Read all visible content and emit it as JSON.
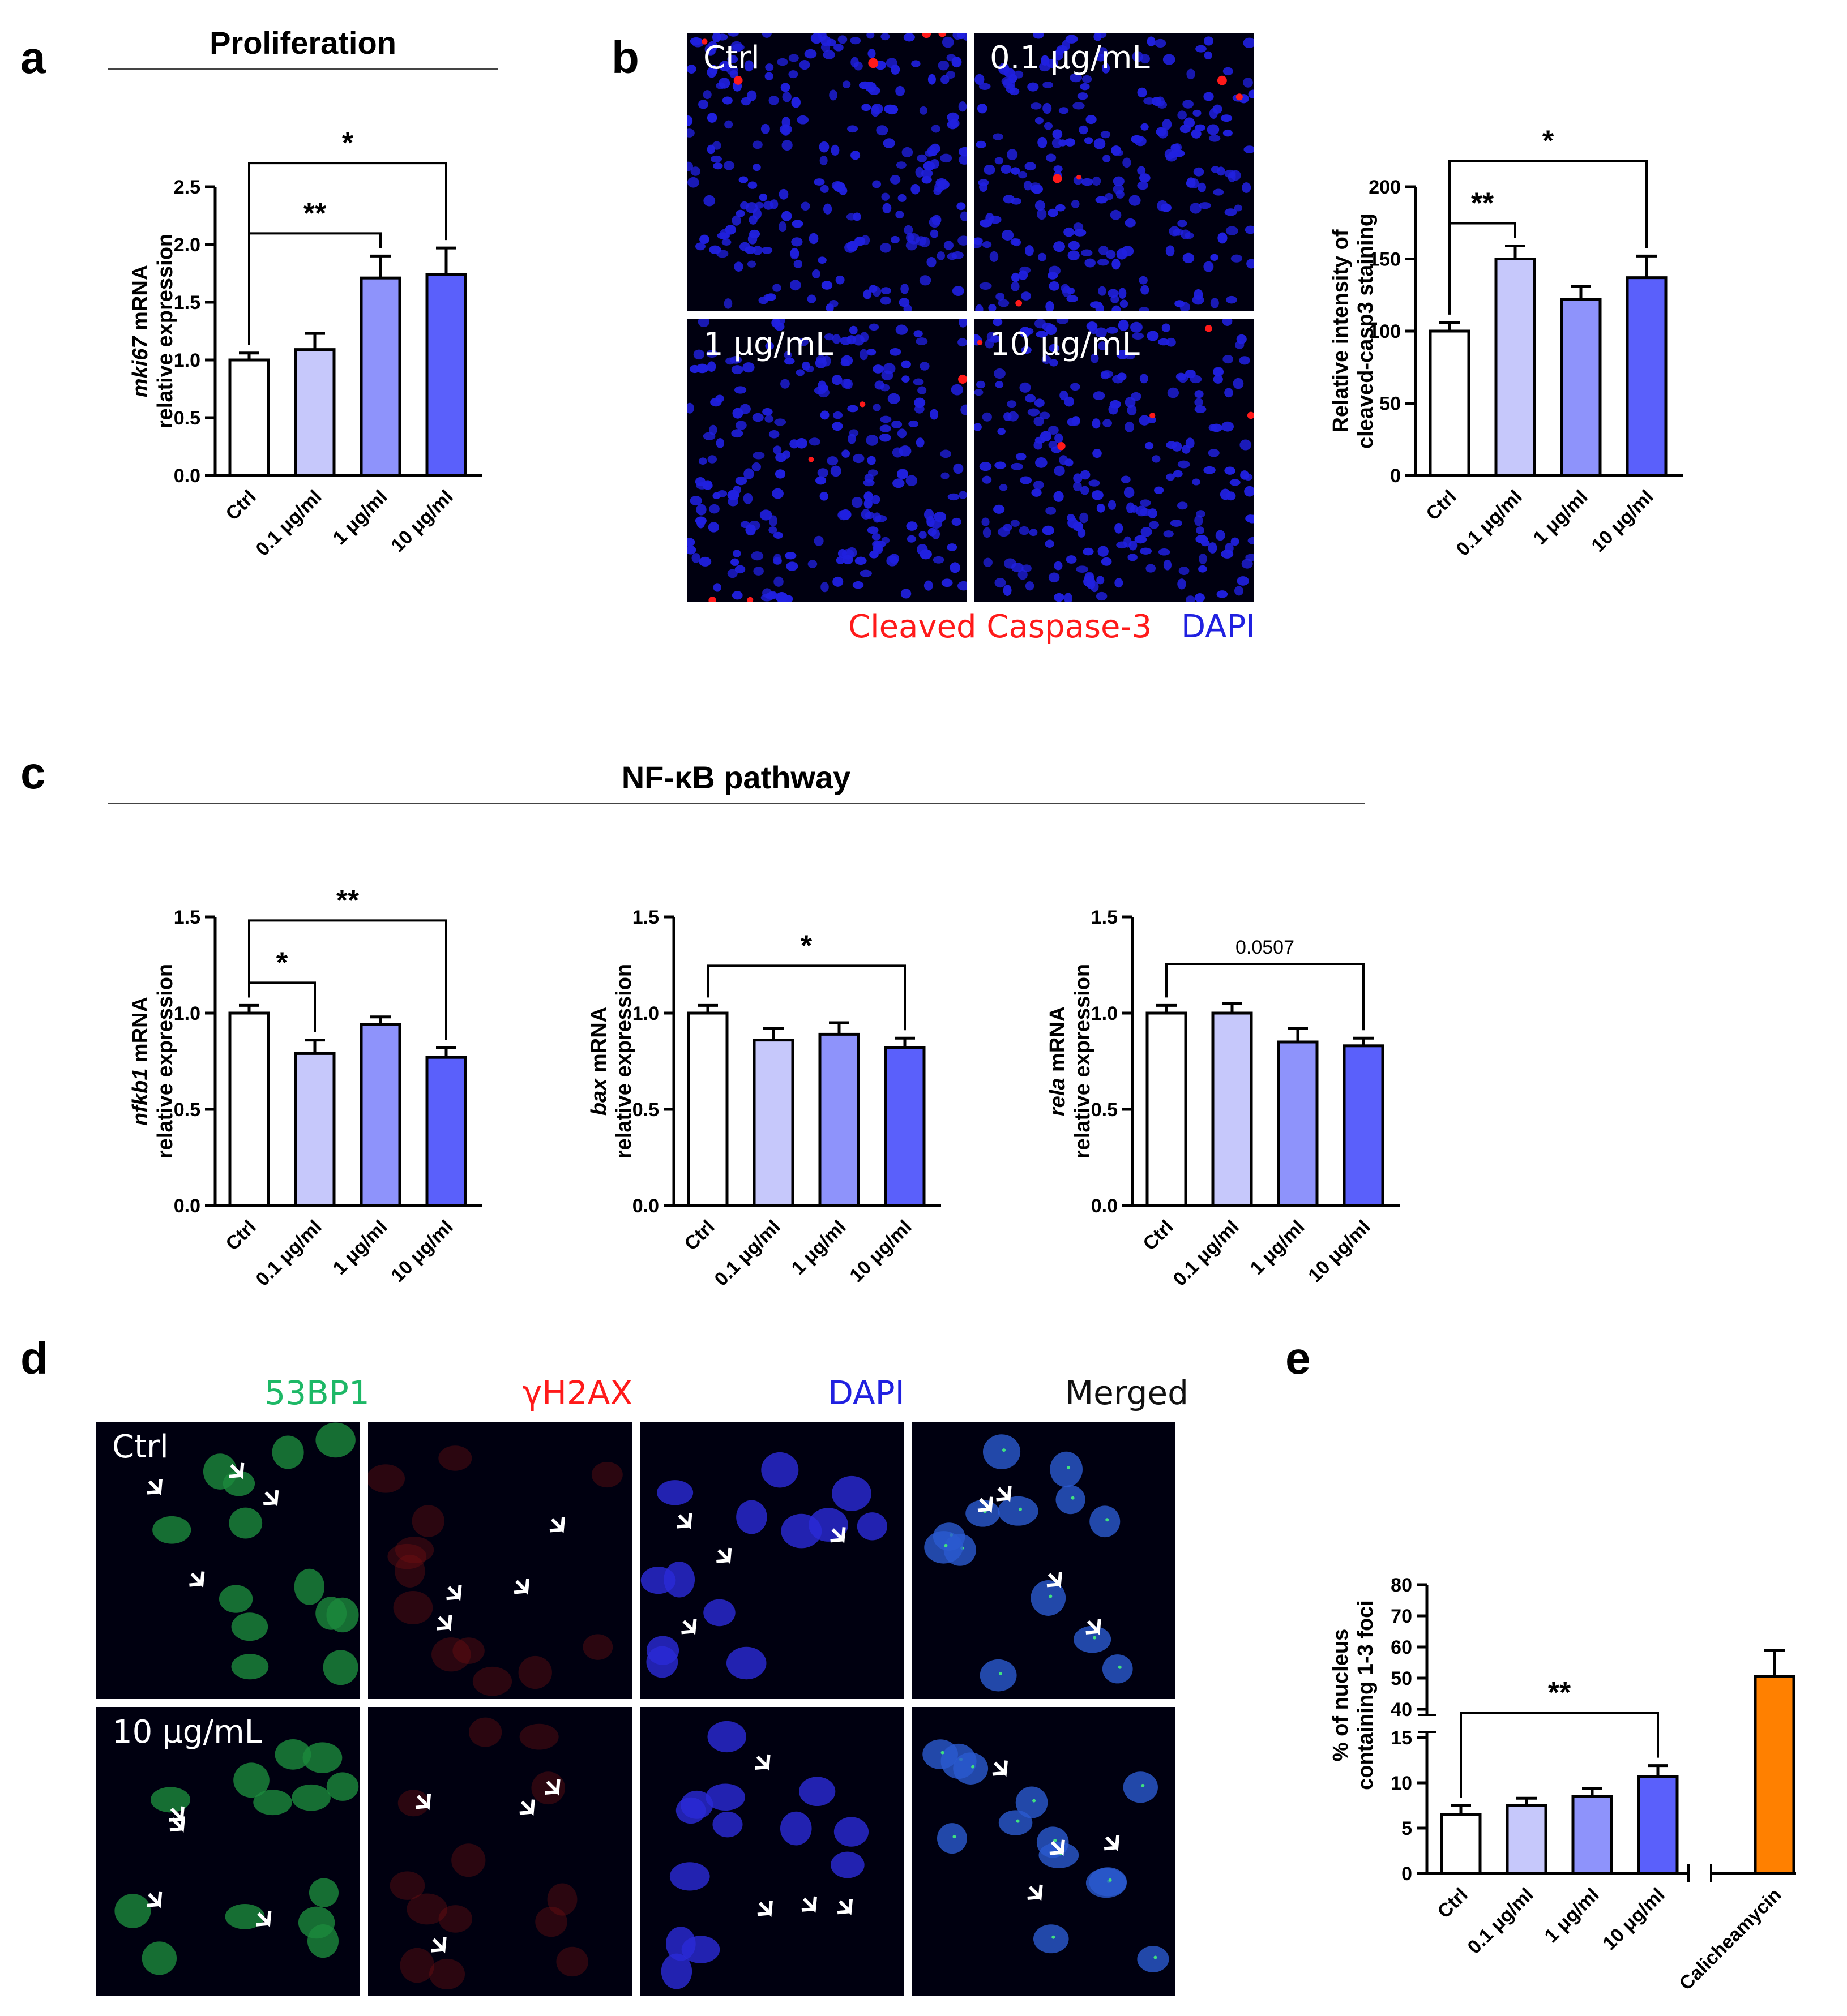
{
  "panels": {
    "a": "a",
    "b": "b",
    "c": "c",
    "d": "d",
    "e": "e"
  },
  "titles": {
    "proliferation": "Proliferation",
    "nfkb": "NF-κB pathway"
  },
  "micro_b": {
    "labels": [
      "Ctrl",
      "0.1 μg/mL",
      "1 μg/mL",
      "10 μg/mL"
    ],
    "legend_red": "Cleaved Caspase-3",
    "legend_blue": "DAPI",
    "colors": {
      "red": "#ff1a1a",
      "blue": "#2020e0"
    }
  },
  "micro_d": {
    "channels": [
      "53BP1",
      "γH2AX",
      "DAPI",
      "Merged"
    ],
    "channel_colors": [
      "#1db866",
      "#ff1a1a",
      "#2020e0",
      "#111111"
    ],
    "rows": [
      "Ctrl",
      "10 μg/mL"
    ]
  },
  "bar_colors": [
    "#ffffff",
    "#c6c8fb",
    "#8e93fb",
    "#5a60fb"
  ],
  "orange": "#ff8000",
  "chart_data": [
    {
      "id": "a",
      "type": "bar",
      "categories": [
        "Ctrl",
        "0.1 μg/ml",
        "1 μg/ml",
        "10 μg/ml"
      ],
      "values": [
        1.0,
        1.09,
        1.71,
        1.74
      ],
      "errors": [
        0.06,
        0.14,
        0.19,
        0.23
      ],
      "ylim": [
        0,
        2.5
      ],
      "yticks": [
        "0.0",
        "0.5",
        "1.0",
        "1.5",
        "2.0",
        "2.5"
      ],
      "ylabel_italic": "mki67",
      "ylabel_rest": " mRNA",
      "ylabel2": "relative expression",
      "brackets": [
        {
          "from": 0,
          "to": 2,
          "label": "**"
        },
        {
          "from": 0,
          "to": 3,
          "label": "*"
        }
      ]
    },
    {
      "id": "b",
      "type": "bar",
      "categories": [
        "Ctrl",
        "0.1 μg/ml",
        "1 μg/ml",
        "10 μg/ml"
      ],
      "values": [
        100,
        150,
        122,
        137
      ],
      "errors": [
        6,
        9,
        9,
        15
      ],
      "ylim": [
        0,
        200
      ],
      "yticks": [
        "0",
        "50",
        "100",
        "150",
        "200"
      ],
      "ylabel_italic": "",
      "ylabel_rest": "Relative intensity of",
      "ylabel2": "cleaved-casp3 staining",
      "brackets": [
        {
          "from": 0,
          "to": 1,
          "label": "**"
        },
        {
          "from": 0,
          "to": 3,
          "label": "*"
        }
      ]
    },
    {
      "id": "c1",
      "type": "bar",
      "categories": [
        "Ctrl",
        "0.1 μg/ml",
        "1 μg/ml",
        "10 μg/ml"
      ],
      "values": [
        1.0,
        0.79,
        0.94,
        0.77
      ],
      "errors": [
        0.04,
        0.07,
        0.04,
        0.05
      ],
      "ylim": [
        0,
        1.5
      ],
      "yticks": [
        "0.0",
        "0.5",
        "1.0",
        "1.5"
      ],
      "ylabel_italic": "nfkb1",
      "ylabel_rest": " mRNA",
      "ylabel2": "relative expression",
      "brackets": [
        {
          "from": 0,
          "to": 1,
          "label": "*"
        },
        {
          "from": 0,
          "to": 3,
          "label": "**"
        }
      ]
    },
    {
      "id": "c2",
      "type": "bar",
      "categories": [
        "Ctrl",
        "0.1 μg/ml",
        "1 μg/ml",
        "10 μg/ml"
      ],
      "values": [
        1.0,
        0.86,
        0.89,
        0.82
      ],
      "errors": [
        0.04,
        0.06,
        0.06,
        0.05
      ],
      "ylim": [
        0,
        1.5
      ],
      "yticks": [
        "0.0",
        "0.5",
        "1.0",
        "1.5"
      ],
      "ylabel_italic": "bax",
      "ylabel_rest": " mRNA",
      "ylabel2": "relative expression",
      "brackets": [
        {
          "from": 0,
          "to": 3,
          "label": "*"
        }
      ]
    },
    {
      "id": "c3",
      "type": "bar",
      "categories": [
        "Ctrl",
        "0.1 μg/ml",
        "1 μg/ml",
        "10 μg/ml"
      ],
      "values": [
        1.0,
        1.0,
        0.85,
        0.83
      ],
      "errors": [
        0.04,
        0.05,
        0.07,
        0.04
      ],
      "ylim": [
        0,
        1.5
      ],
      "yticks": [
        "0.0",
        "0.5",
        "1.0",
        "1.5"
      ],
      "ylabel_italic": "rela",
      "ylabel_rest": " mRNA",
      "ylabel2": "relative expression",
      "brackets": [
        {
          "from": 0,
          "to": 3,
          "label": "0.0507"
        }
      ]
    },
    {
      "id": "e",
      "type": "bar",
      "categories": [
        "Ctrl",
        "0.1 μg/ml",
        "1 μg/ml",
        "10 μg/ml",
        "Calicheamycin"
      ],
      "values": [
        6.5,
        7.5,
        8.5,
        10.7,
        50.5
      ],
      "errors": [
        1.0,
        0.8,
        0.9,
        1.2,
        8.5
      ],
      "ylim_lower": [
        0,
        15
      ],
      "ylim_upper": [
        40,
        80
      ],
      "yticks_lower": [
        "0",
        "5",
        "10",
        "15"
      ],
      "yticks_upper": [
        "40",
        "50",
        "60",
        "70",
        "80"
      ],
      "ylabel_italic": "",
      "ylabel_rest": "% of nucleus",
      "ylabel2": "containing 1-3 foci",
      "brackets": [
        {
          "from": 0,
          "to": 3,
          "label": "**"
        }
      ]
    }
  ]
}
